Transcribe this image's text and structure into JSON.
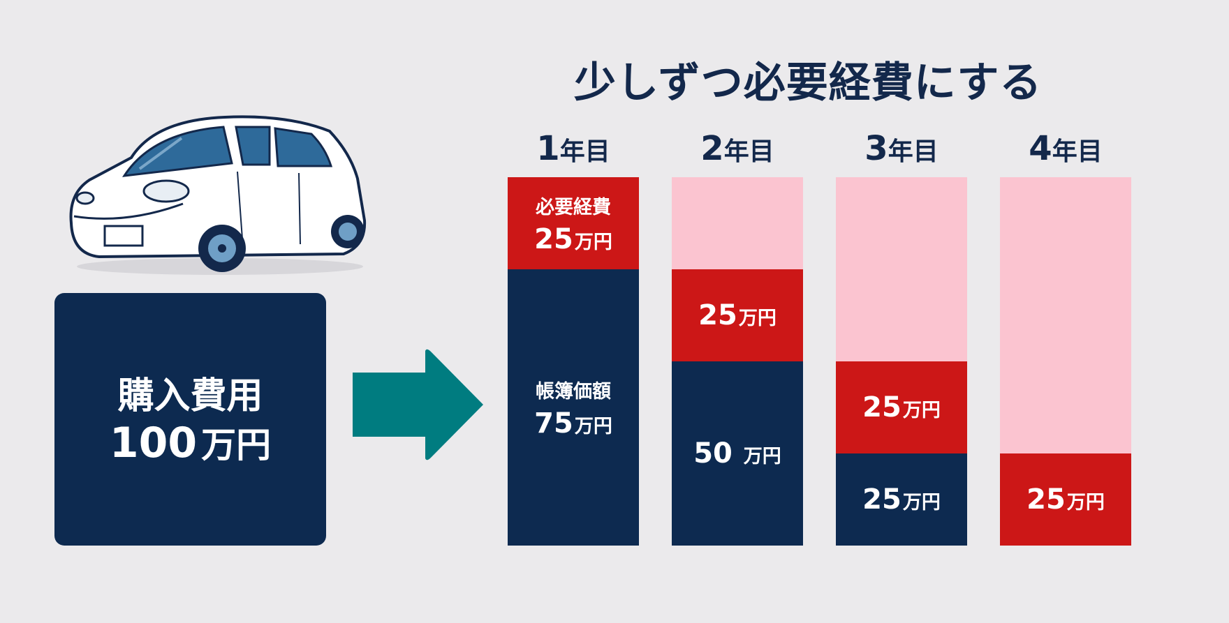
{
  "title": "少しずつ必要経費にする",
  "purchase": {
    "label": "購入費用",
    "amount": "100",
    "unit": "万円"
  },
  "colors": {
    "navy": "#0d2a50",
    "red": "#cc1717",
    "pink": "#fbc4d0",
    "teal": "#007c80",
    "title": "#13284b",
    "background": "#ebeaec"
  },
  "icons": [
    "car-icon",
    "arrow-right-icon"
  ],
  "chart_data": {
    "type": "bar",
    "stacked": true,
    "total": 100,
    "unit": "万円",
    "categories": [
      {
        "num": "1",
        "suffix": "年目"
      },
      {
        "num": "2",
        "suffix": "年目"
      },
      {
        "num": "3",
        "suffix": "年目"
      },
      {
        "num": "4",
        "suffix": "年目"
      }
    ],
    "series": [
      {
        "name": "帳簿価額",
        "color": "#0d2a50",
        "values": [
          75,
          50,
          25,
          0
        ]
      },
      {
        "name": "必要経費",
        "color": "#cc1717",
        "values": [
          25,
          25,
          25,
          25
        ]
      },
      {
        "color": "#fbc4d0",
        "values": [
          0,
          25,
          50,
          75
        ]
      }
    ],
    "labels": [
      {
        "bar": 0,
        "series": 1,
        "caption": "必要経費",
        "amount": "25",
        "unit": "万円"
      },
      {
        "bar": 0,
        "series": 0,
        "caption": "帳簿価額",
        "amount": "75",
        "unit": "万円"
      },
      {
        "bar": 1,
        "series": 1,
        "amount": "25",
        "unit": "万円"
      },
      {
        "bar": 1,
        "series": 0,
        "amount": "50 ",
        "unit": "万円"
      },
      {
        "bar": 2,
        "series": 1,
        "amount": "25",
        "unit": "万円"
      },
      {
        "bar": 2,
        "series": 0,
        "amount": "25",
        "unit": "万円"
      },
      {
        "bar": 3,
        "series": 1,
        "amount": "25",
        "unit": "万円"
      }
    ]
  }
}
